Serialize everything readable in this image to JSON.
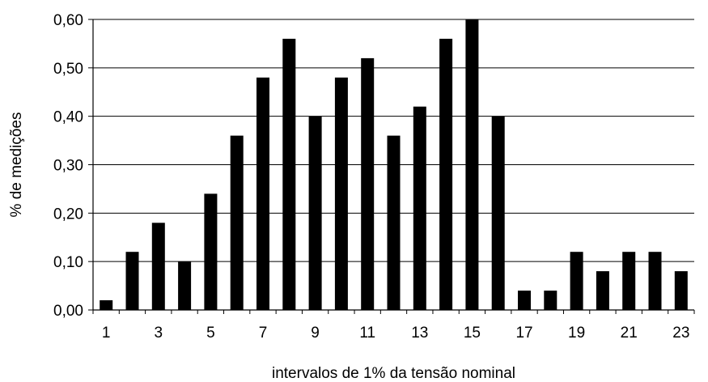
{
  "chart_data": {
    "type": "bar",
    "title": "",
    "xlabel": "intervalos de 1% da tensão nominal",
    "ylabel": "% de medições",
    "categories": [
      1,
      2,
      3,
      4,
      5,
      6,
      7,
      8,
      9,
      10,
      11,
      12,
      13,
      14,
      15,
      16,
      17,
      18,
      19,
      20,
      21,
      22,
      23
    ],
    "x_tick_labels": [
      "1",
      "3",
      "5",
      "7",
      "9",
      "11",
      "13",
      "15",
      "17",
      "19",
      "21",
      "23"
    ],
    "values": [
      0.02,
      0.12,
      0.18,
      0.1,
      0.24,
      0.36,
      0.48,
      0.56,
      0.4,
      0.48,
      0.52,
      0.36,
      0.42,
      0.56,
      0.6,
      0.4,
      0.04,
      0.04,
      0.12,
      0.08,
      0.12,
      0.12,
      0.08
    ],
    "ylim": [
      0,
      0.6
    ],
    "y_tick_labels": [
      "0,00",
      "0,10",
      "0,20",
      "0,30",
      "0,40",
      "0,50",
      "0,60"
    ],
    "grid": "horizontal",
    "bar_color": "#000000",
    "legend": "none"
  }
}
